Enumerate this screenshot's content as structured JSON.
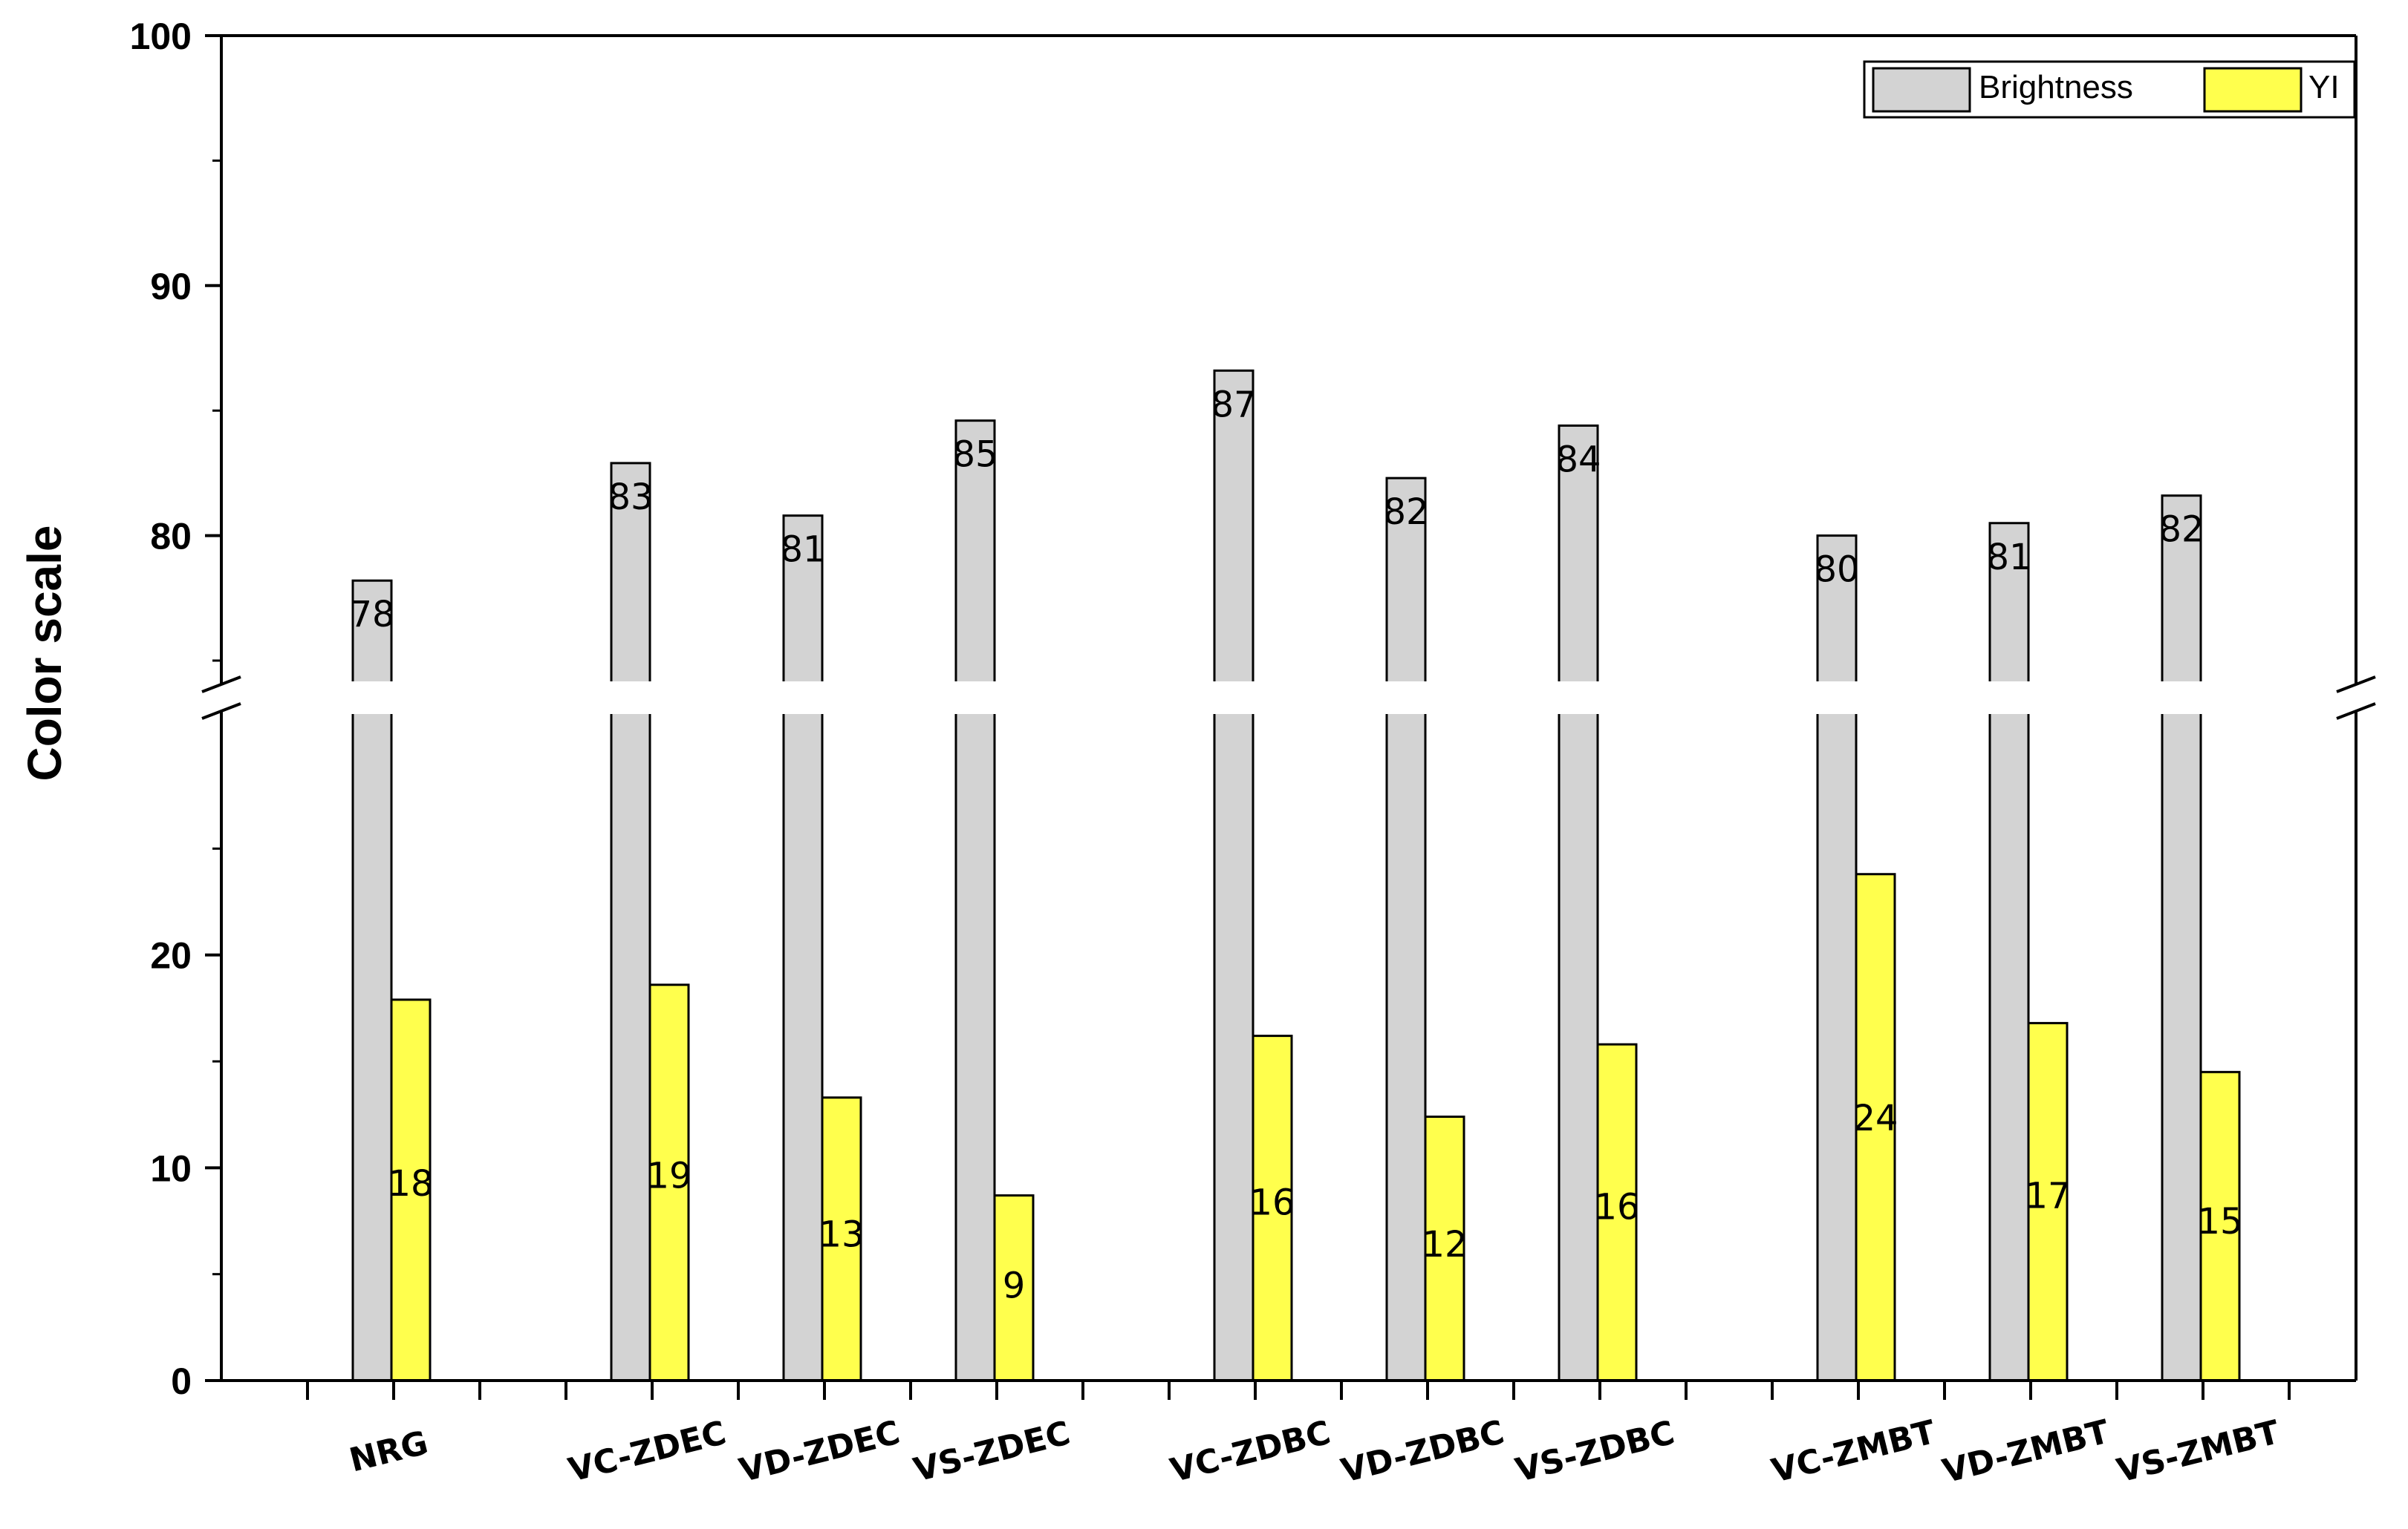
{
  "chart_data": {
    "type": "bar",
    "ylabel": "Color scale",
    "categories": [
      "NRG",
      "VC-ZDEC",
      "VD-ZDEC",
      "VS-ZDEC",
      "VC-ZDBC",
      "VD-ZDBC",
      "VS-ZDBC",
      "VC-ZMBT",
      "VD-ZMBT",
      "VS-ZMBT"
    ],
    "series": [
      {
        "name": "Brightness",
        "color": "#d3d3d3",
        "values": [
          78.2,
          82.9,
          80.8,
          84.6,
          86.6,
          82.3,
          84.4,
          80.0,
          80.5,
          81.6
        ],
        "labels": [
          "78",
          "83",
          "81",
          "85",
          "87",
          "82",
          "84",
          "80",
          "81",
          "82"
        ]
      },
      {
        "name": "YI",
        "color": "#ffff4d",
        "values": [
          17.9,
          18.6,
          13.3,
          8.7,
          16.2,
          12.4,
          15.8,
          23.8,
          16.8,
          14.5
        ],
        "labels": [
          "18",
          "19",
          "13",
          "9",
          "16",
          "12",
          "16",
          "24",
          "17",
          "15"
        ]
      }
    ],
    "y_axis": {
      "broken": true,
      "lower_range": [
        0,
        30
      ],
      "upper_range": [
        75,
        100
      ],
      "lower_tick_labels": [
        "0",
        "10",
        "20"
      ],
      "upper_tick_labels": [
        "80",
        "90",
        "100"
      ]
    },
    "category_groups": [
      [
        0
      ],
      [
        1,
        2,
        3
      ],
      [
        4,
        5,
        6
      ],
      [
        7,
        8,
        9
      ]
    ],
    "legend": {
      "placement": "top-right"
    },
    "grid": false
  }
}
